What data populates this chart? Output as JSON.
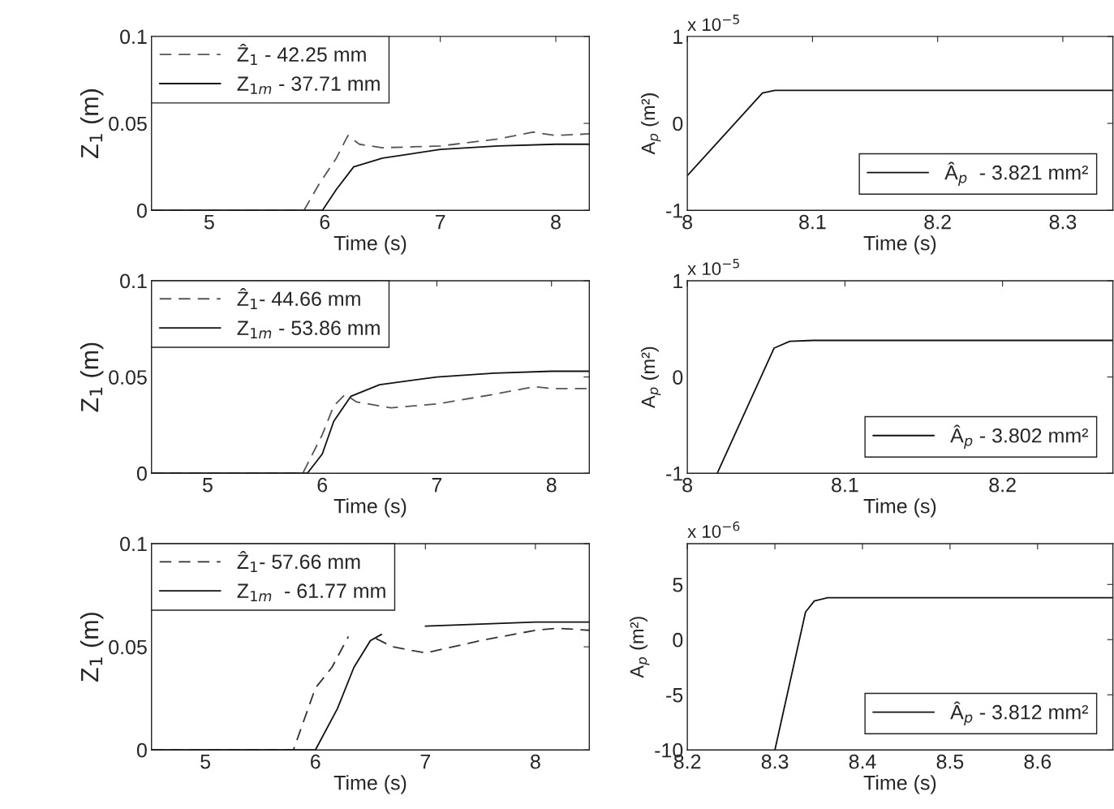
{
  "chart_data": [
    {
      "type": "line",
      "xlabel": "Time (s)",
      "ylabel": "Z$_{1}$ (m)",
      "xlim": [
        4.5,
        8.29
      ],
      "ylim": [
        0,
        0.1
      ],
      "xticks": [
        5,
        6,
        7,
        8
      ],
      "yticks": [
        0,
        0.05,
        0.1
      ],
      "legend": "top left",
      "grid": false,
      "series": [
        {
          "name": "Ẑ$_{1}$ - 42.25 mm",
          "color": "#555555",
          "line_style": "dashed",
          "x": [
            4.5,
            5.82,
            5.95,
            6.1,
            6.2,
            6.3,
            6.5,
            7,
            7.5,
            7.8,
            8,
            8.29
          ],
          "values": [
            0,
            0,
            0.015,
            0.03,
            0.043,
            0.038,
            0.036,
            0.037,
            0.041,
            0.045,
            0.043,
            0.044
          ]
        },
        {
          "name": "Z$_{1m}$ - 37.71 mm",
          "color": "#111111",
          "line_style": "solid",
          "x": [
            4.5,
            5.98,
            6.1,
            6.25,
            6.5,
            7,
            7.5,
            8,
            8.29
          ],
          "values": [
            0,
            0,
            0.012,
            0.025,
            0.03,
            0.035,
            0.037,
            0.038,
            0.038
          ]
        }
      ]
    },
    {
      "type": "line",
      "xlabel": "Time (s)",
      "ylabel": "A$_{p}$ (m²)",
      "xlim": [
        8,
        8.34
      ],
      "ylim": [
        -1,
        1
      ],
      "xticks": [
        8,
        8.1,
        8.2,
        8.3
      ],
      "yticks": [
        -1,
        0,
        1
      ],
      "legend": "bottom right",
      "grid": false,
      "annotations": [
        "x 10$^{−5}$"
      ],
      "series": [
        {
          "name": "Â$_{p}$  - 3.821 mm²",
          "color": "#111111",
          "line_style": "solid",
          "x": [
            8,
            8.06,
            8.07,
            8.34
          ],
          "values": [
            -0.6,
            0.35,
            0.38,
            0.38
          ]
        }
      ]
    },
    {
      "type": "line",
      "xlabel": "Time (s)",
      "ylabel": "Z$_{1}$ (m)",
      "xlim": [
        4.51,
        8.33
      ],
      "ylim": [
        0,
        0.1
      ],
      "xticks": [
        5,
        6,
        7,
        8
      ],
      "yticks": [
        0,
        0.05,
        0.1
      ],
      "legend": "top left",
      "grid": false,
      "series": [
        {
          "name": "Ẑ$_{1}$- 44.66 mm",
          "color": "#555555",
          "line_style": "dashed",
          "x": [
            4.51,
            5.83,
            6.0,
            6.1,
            6.2,
            6.3,
            6.6,
            7,
            7.5,
            7.85,
            8,
            8.33
          ],
          "values": [
            0,
            0,
            0.02,
            0.035,
            0.041,
            0.037,
            0.034,
            0.036,
            0.041,
            0.045,
            0.044,
            0.044
          ]
        },
        {
          "name": "Z$_{1m}$ - 53.86 mm",
          "color": "#111111",
          "line_style": "solid",
          "x": [
            4.51,
            5.87,
            6.0,
            6.1,
            6.25,
            6.5,
            7,
            7.5,
            8,
            8.33
          ],
          "values": [
            0,
            0,
            0.01,
            0.027,
            0.04,
            0.046,
            0.05,
            0.052,
            0.053,
            0.053
          ]
        }
      ]
    },
    {
      "type": "line",
      "xlabel": "Time (s)",
      "ylabel": "A$_{p}$ (m²)",
      "xlim": [
        8,
        8.27
      ],
      "ylim": [
        -1,
        1
      ],
      "xticks": [
        8,
        8.1,
        8.2
      ],
      "yticks": [
        -1,
        0,
        1
      ],
      "legend": "bottom right",
      "grid": false,
      "annotations": [
        "x 10$^{−5}$"
      ],
      "series": [
        {
          "name": "Â$_{p}$ - 3.802 mm²",
          "color": "#111111",
          "line_style": "solid",
          "x": [
            8.019,
            8.055,
            8.065,
            8.08,
            8.27
          ],
          "values": [
            -1,
            0.3,
            0.37,
            0.38,
            0.38
          ]
        }
      ]
    },
    {
      "type": "line",
      "xlabel": "Time (s)",
      "ylabel": "Z$_{1}$ (m)",
      "xlim": [
        4.51,
        8.49
      ],
      "ylim": [
        0,
        0.1
      ],
      "xticks": [
        5,
        6,
        7,
        8
      ],
      "yticks": [
        0,
        0.05,
        0.1
      ],
      "legend": "top left",
      "grid": false,
      "series": [
        {
          "name": "Ẑ$_{1}$- 57.66 mm",
          "color": "#333333",
          "line_style": "dashed",
          "x": [
            4.51,
            5.8,
            6.0,
            6.15,
            6.3,
            6.45,
            6.55,
            6.7,
            7,
            7.5,
            8,
            8.2,
            8.49
          ],
          "values": [
            0,
            0,
            0.03,
            0.04,
            0.055,
            null,
            0.054,
            0.05,
            0.047,
            0.053,
            0.058,
            0.059,
            0.058
          ]
        },
        {
          "name": "Z$_{1m}$  - 61.77 mm",
          "color": "#111111",
          "line_style": "solid",
          "x": [
            4.51,
            6.0,
            6.2,
            6.35,
            6.5,
            6.6,
            6.8,
            7.0,
            7.5,
            8,
            8.49
          ],
          "values": [
            0,
            0,
            0.02,
            0.04,
            0.053,
            0.056,
            null,
            0.06,
            0.061,
            0.062,
            0.062
          ]
        }
      ]
    },
    {
      "type": "line",
      "xlabel": "Time (s)",
      "ylabel": "A$_{p}$ (m²)",
      "xlim": [
        8.2,
        8.686
      ],
      "ylim": [
        -10,
        8.7
      ],
      "xticks": [
        8.2,
        8.3,
        8.4,
        8.5,
        8.6
      ],
      "yticks": [
        -10,
        -5,
        0,
        5
      ],
      "legend": "bottom right",
      "grid": false,
      "annotations": [
        "x 10$^{−6}$"
      ],
      "series": [
        {
          "name": "Â$_{p}$ - 3.812 mm²",
          "color": "#111111",
          "line_style": "solid",
          "x": [
            8.3,
            8.335,
            8.345,
            8.36,
            8.686
          ],
          "values": [
            -10,
            2.5,
            3.5,
            3.8,
            3.8
          ]
        }
      ]
    }
  ]
}
